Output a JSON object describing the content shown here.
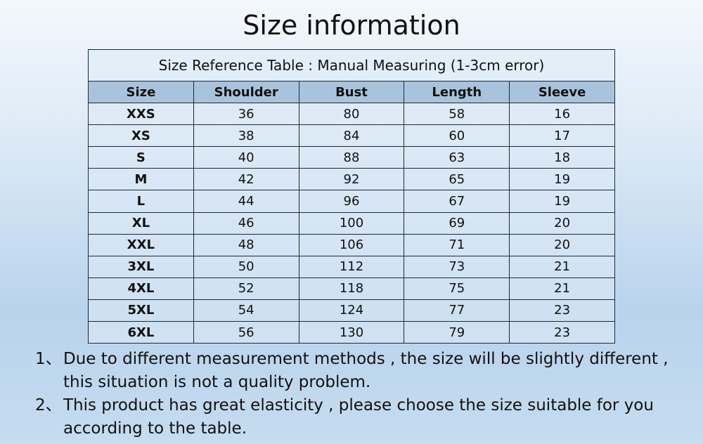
{
  "title": "Size information",
  "table": {
    "caption": "Size Reference Table : Manual Measuring (1-3cm error)",
    "headers": [
      "Size",
      "Shoulder",
      "Bust",
      "Length",
      "Sleeve"
    ],
    "rows": [
      [
        "XXS",
        "36",
        "80",
        "58",
        "16"
      ],
      [
        "XS",
        "38",
        "84",
        "60",
        "17"
      ],
      [
        "S",
        "40",
        "88",
        "63",
        "18"
      ],
      [
        "M",
        "42",
        "92",
        "65",
        "19"
      ],
      [
        "L",
        "44",
        "96",
        "67",
        "19"
      ],
      [
        "XL",
        "46",
        "100",
        "69",
        "20"
      ],
      [
        "XXL",
        "48",
        "106",
        "71",
        "20"
      ],
      [
        "3XL",
        "50",
        "112",
        "73",
        "21"
      ],
      [
        "4XL",
        "52",
        "118",
        "75",
        "21"
      ],
      [
        "5XL",
        "54",
        "124",
        "77",
        "23"
      ],
      [
        "6XL",
        "56",
        "130",
        "79",
        "23"
      ]
    ]
  },
  "notes": [
    {
      "num": "1、",
      "text": "Due to different measurement methods , the size will be slightly different , this situation is not a quality problem."
    },
    {
      "num": "2、",
      "text": "This product has great elasticity , please choose the size suitable for you according to the table."
    }
  ]
}
